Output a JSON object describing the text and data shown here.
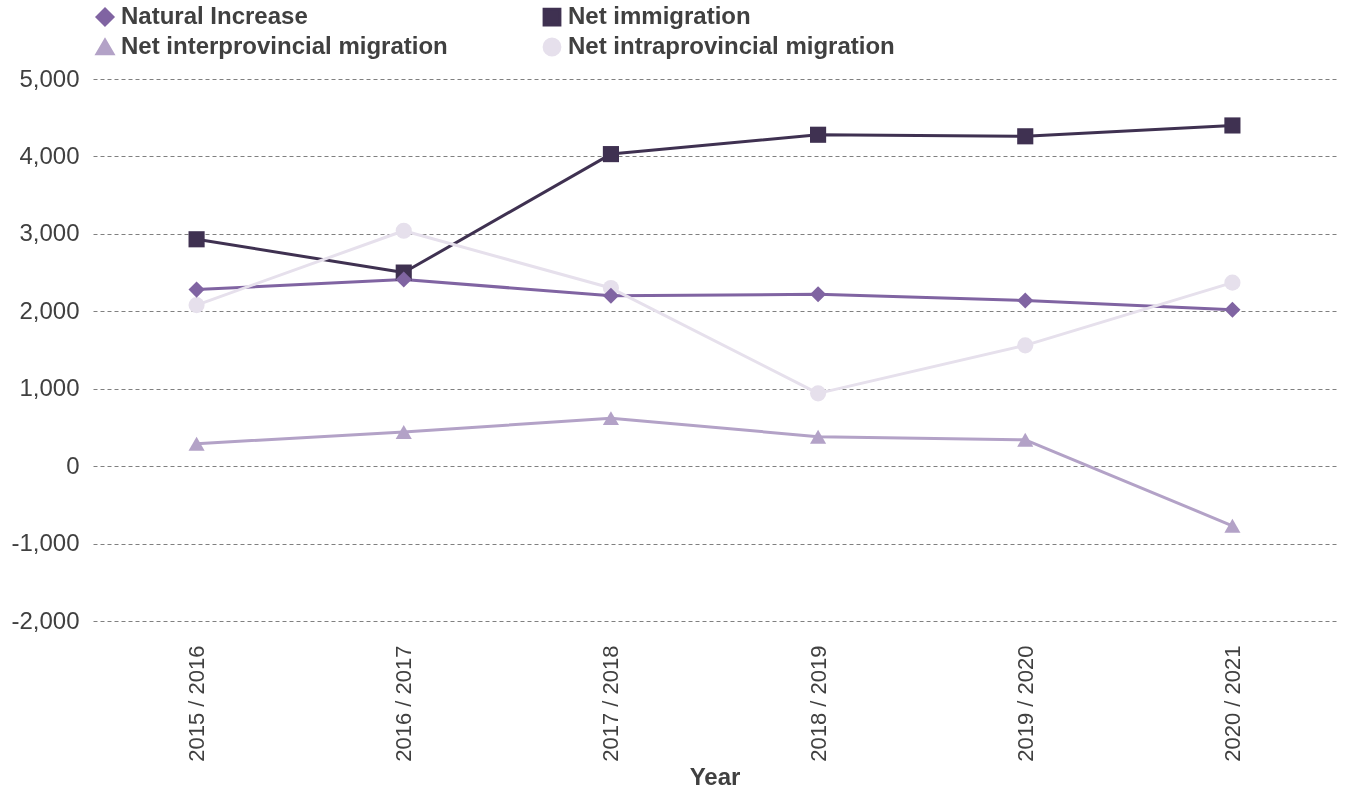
{
  "chart_data": {
    "type": "line",
    "xlabel": "Year",
    "categories": [
      "2015 / 2016",
      "2016 / 2017",
      "2017 / 2018",
      "2018 / 2019",
      "2019 / 2020",
      "2020 / 2021"
    ],
    "series": [
      {
        "name": "Natural Increase",
        "color": "#8064a2",
        "marker": "diamond",
        "values": [
          2280,
          2410,
          2200,
          2220,
          2140,
          2020
        ]
      },
      {
        "name": "Net immigration",
        "color": "#3f3151",
        "marker": "square",
        "values": [
          2930,
          2500,
          4030,
          4280,
          4260,
          4400
        ]
      },
      {
        "name": "Net interprovincial migration",
        "color": "#b3a2c7",
        "marker": "triangle",
        "values": [
          290,
          440,
          620,
          380,
          340,
          -770
        ]
      },
      {
        "name": "Net intraprovincial migration",
        "color": "#e6e0ec",
        "marker": "circle",
        "values": [
          2080,
          3040,
          2300,
          940,
          1560,
          2370
        ]
      }
    ],
    "ylim": [
      -2000,
      5000
    ],
    "yticks": [
      {
        "value": -2000,
        "label": "-2,000"
      },
      {
        "value": -1000,
        "label": "-1,000"
      },
      0,
      {
        "value": 1000,
        "label": "1,000"
      },
      {
        "value": 2000,
        "label": "2,000"
      },
      {
        "value": 3000,
        "label": "3,000"
      },
      {
        "value": 4000,
        "label": "4,000"
      },
      {
        "value": 5000,
        "label": "5,000"
      }
    ],
    "grid": "y",
    "legend": "top"
  }
}
